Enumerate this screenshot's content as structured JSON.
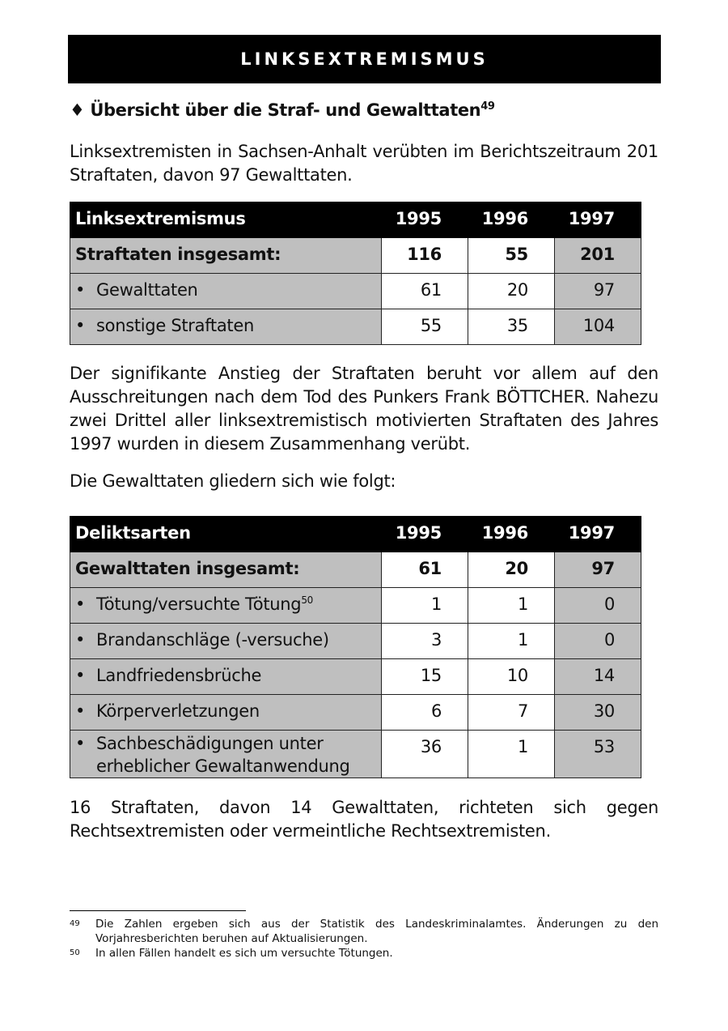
{
  "banner": "LINKSEXTREMISMUS",
  "heading": {
    "bullet": "♦",
    "text": "Übersicht über die Straf- und Gewalttaten",
    "footnote_ref": "49"
  },
  "para1": "Linksextremisten in Sachsen-Anhalt verübten im Berichtszeitraum 201 Straftaten, davon 97 Gewalttaten.",
  "table1": {
    "header": [
      "Linksextremismus",
      "1995",
      "1996",
      "1997"
    ],
    "total": [
      "Straftaten insgesamt:",
      "116",
      "55",
      "201"
    ],
    "rows": [
      [
        "Gewalttaten",
        "61",
        "20",
        "97"
      ],
      [
        "sonstige Straftaten",
        "55",
        "35",
        "104"
      ]
    ]
  },
  "para2": "Der signifikante Anstieg der Straftaten beruht vor allem auf den Ausschreitungen nach dem Tod des Punkers Frank BÖTTCHER. Nahezu zwei Drittel aller linksextremistisch motivierten Straftaten des Jahres 1997 wurden in diesem Zusammenhang verübt.",
  "para3": "Die Gewalttaten gliedern sich wie folgt:",
  "table2": {
    "header": [
      "Deliktsarten",
      "1995",
      "1996",
      "1997"
    ],
    "total": [
      "Gewalttaten insgesamt:",
      "61",
      "20",
      "97"
    ],
    "rows": [
      [
        "Tötung/versuchte Tötung",
        "1",
        "1",
        "0"
      ],
      [
        "Brandanschläge (-versuche)",
        "3",
        "1",
        "0"
      ],
      [
        "Landfriedensbrüche",
        "15",
        "10",
        "14"
      ],
      [
        "Körperverletzungen",
        "6",
        "7",
        "30"
      ],
      [
        "Sachbeschädigungen unter erheblicher Gewaltanwendung",
        "36",
        "1",
        "53"
      ]
    ],
    "row0_footnote_ref": "50"
  },
  "para4": "16 Straftaten, davon 14 Gewalttaten, richteten sich gegen Rechtsextremisten oder vermeintliche Rechtsextremisten.",
  "footnotes": [
    {
      "no": "49",
      "text": "Die Zahlen ergeben sich aus der Statistik des Landeskriminalamtes. Änderungen zu den Vorjahresberichten beruhen auf Aktualisierungen."
    },
    {
      "no": "50",
      "text": "In allen Fällen handelt es sich um versuchte Tötungen."
    }
  ],
  "colors": {
    "header_bg": "#000000",
    "shaded_cell": "#bfbfbf"
  }
}
